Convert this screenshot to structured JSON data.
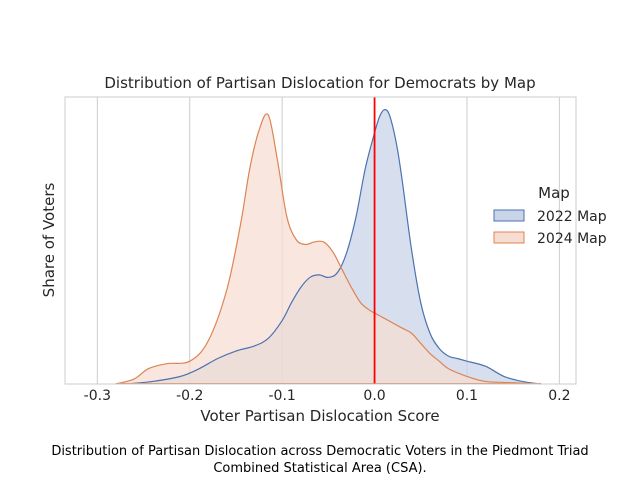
{
  "chart_data": {
    "type": "area",
    "title": "Distribution of Partisan Dislocation for Democrats by Map",
    "xlabel": "Voter Partisan Dislocation Score",
    "ylabel": "Share of Voters",
    "xlim": [
      -0.335,
      0.218
    ],
    "x_ticks": [
      "-0.3",
      "-0.2",
      "-0.1",
      "0.0",
      "0.1",
      "0.2"
    ],
    "x_tick_values": [
      -0.3,
      -0.2,
      -0.1,
      0.0,
      0.1,
      0.2
    ],
    "ylim": [
      0,
      1.1
    ],
    "grid": "vertical",
    "reference_line": {
      "x": 0.0,
      "color": "#ff0000"
    },
    "legend": {
      "title": "Map",
      "position": "right"
    },
    "series": [
      {
        "name": "2022 Map",
        "line_color": "#4c72b0",
        "fill_color": "#c9d4e9",
        "x": [
          -0.27,
          -0.24,
          -0.21,
          -0.19,
          -0.17,
          -0.15,
          -0.13,
          -0.115,
          -0.1,
          -0.09,
          -0.08,
          -0.07,
          -0.06,
          -0.05,
          -0.04,
          -0.03,
          -0.02,
          -0.01,
          0.0,
          0.005,
          0.01,
          0.015,
          0.02,
          0.025,
          0.03,
          0.04,
          0.05,
          0.06,
          0.07,
          0.08,
          0.09,
          0.1,
          0.12,
          0.14,
          0.16,
          0.18
        ],
        "y": [
          0.0,
          0.01,
          0.03,
          0.06,
          0.1,
          0.13,
          0.15,
          0.18,
          0.25,
          0.32,
          0.38,
          0.42,
          0.43,
          0.42,
          0.44,
          0.52,
          0.66,
          0.85,
          0.99,
          1.05,
          1.08,
          1.07,
          1.01,
          0.92,
          0.8,
          0.53,
          0.32,
          0.2,
          0.14,
          0.11,
          0.1,
          0.09,
          0.07,
          0.03,
          0.01,
          0.0
        ]
      },
      {
        "name": "2024 Map",
        "line_color": "#dd8452",
        "fill_color": "#f7ddd1",
        "x": [
          -0.28,
          -0.26,
          -0.245,
          -0.225,
          -0.2,
          -0.18,
          -0.16,
          -0.145,
          -0.135,
          -0.125,
          -0.115,
          -0.105,
          -0.095,
          -0.085,
          -0.075,
          -0.065,
          -0.055,
          -0.045,
          -0.035,
          -0.025,
          -0.015,
          -0.005,
          0.0,
          0.01,
          0.02,
          0.03,
          0.04,
          0.05,
          0.06,
          0.07,
          0.08,
          0.1,
          0.12,
          0.15,
          0.18
        ],
        "y": [
          0.0,
          0.02,
          0.06,
          0.08,
          0.09,
          0.17,
          0.37,
          0.63,
          0.85,
          1.0,
          1.06,
          0.88,
          0.66,
          0.57,
          0.55,
          0.56,
          0.56,
          0.52,
          0.45,
          0.38,
          0.32,
          0.29,
          0.28,
          0.26,
          0.24,
          0.22,
          0.2,
          0.16,
          0.12,
          0.09,
          0.06,
          0.03,
          0.01,
          0.005,
          0.0
        ]
      }
    ]
  },
  "caption": {
    "line1": "Distribution of Partisan Dislocation across Democratic Voters in the Piedmont Triad",
    "line2": "Combined Statistical Area (CSA)."
  }
}
